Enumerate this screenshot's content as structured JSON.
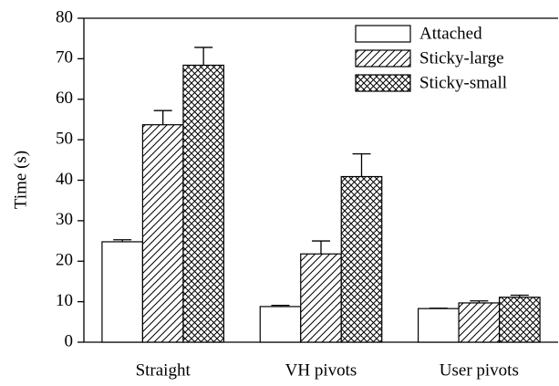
{
  "chart_data": {
    "type": "bar",
    "ylabel": "Time (s)",
    "categories": [
      "Straight",
      "VH pivots",
      "User pivots"
    ],
    "series": [
      {
        "name": "Attached",
        "color": "#ffffff",
        "pattern": "none",
        "values": [
          24.8,
          8.8,
          8.3
        ],
        "errors": [
          0.5,
          0.3,
          0.1
        ]
      },
      {
        "name": "Sticky-large",
        "color": "#ffffff",
        "pattern": "diagonal",
        "values": [
          53.7,
          21.8,
          9.7
        ],
        "errors": [
          3.5,
          3.2,
          0.5
        ]
      },
      {
        "name": "Sticky-small",
        "color": "#ffffff",
        "pattern": "crosshatch",
        "values": [
          68.4,
          40.9,
          11.1
        ],
        "errors": [
          4.4,
          5.6,
          0.5
        ]
      }
    ],
    "ylim": [
      0,
      80
    ],
    "yticks": [
      0,
      10,
      20,
      30,
      40,
      50,
      60,
      70,
      80
    ],
    "legend": "upper right"
  }
}
